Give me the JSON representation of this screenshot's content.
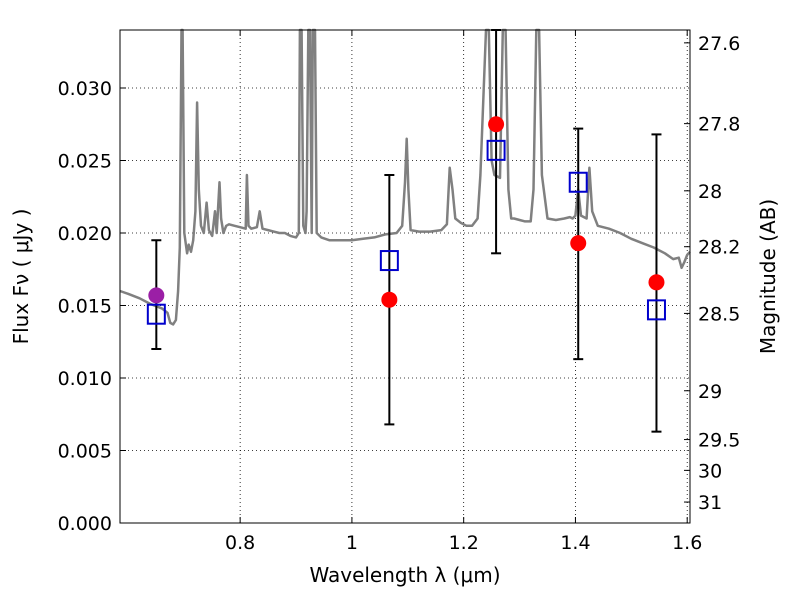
{
  "chart_data": {
    "type": "scatter",
    "xlabel": "Wavelength  λ (μm)",
    "ylabel": "Flux  Fν  ( μJy )",
    "ylabel_right": "Magnitude (AB)",
    "xlim": [
      0.585,
      1.605
    ],
    "ylim": [
      0.0,
      0.034
    ],
    "grid": true,
    "x_ticks": [
      {
        "value": 0.8,
        "label": "0.8"
      },
      {
        "value": 1.0,
        "label": "1"
      },
      {
        "value": 1.2,
        "label": "1.2"
      },
      {
        "value": 1.4,
        "label": "1.4"
      },
      {
        "value": 1.6,
        "label": "1.6"
      }
    ],
    "y_ticks": [
      {
        "value": 0.0,
        "label": "0.000"
      },
      {
        "value": 0.005,
        "label": "0.005"
      },
      {
        "value": 0.01,
        "label": "0.010"
      },
      {
        "value": 0.015,
        "label": "0.015"
      },
      {
        "value": 0.02,
        "label": "0.020"
      },
      {
        "value": 0.025,
        "label": "0.025"
      },
      {
        "value": 0.03,
        "label": "0.030"
      }
    ],
    "mag_ticks": [
      {
        "mag": 27.6,
        "label": "27.6"
      },
      {
        "mag": 27.8,
        "label": "27.8"
      },
      {
        "mag": 28.0,
        "label": "28"
      },
      {
        "mag": 28.2,
        "label": "28.2"
      },
      {
        "mag": 28.5,
        "label": "28.5"
      },
      {
        "mag": 29.0,
        "label": "29"
      },
      {
        "mag": 29.5,
        "label": "29.5"
      },
      {
        "mag": 30.0,
        "label": "30"
      },
      {
        "mag": 31.0,
        "label": "31"
      }
    ],
    "series": [
      {
        "kind": "line",
        "color": "#808080",
        "points": [
          [
            0.585,
            0.016
          ],
          [
            0.6,
            0.0158
          ],
          [
            0.62,
            0.0155
          ],
          [
            0.64,
            0.0151
          ],
          [
            0.66,
            0.0148
          ],
          [
            0.67,
            0.0145
          ],
          [
            0.675,
            0.0138
          ],
          [
            0.68,
            0.0137
          ],
          [
            0.685,
            0.014
          ],
          [
            0.689,
            0.016
          ],
          [
            0.692,
            0.019
          ],
          [
            0.695,
            0.034
          ],
          [
            0.697,
            0.034
          ],
          [
            0.7,
            0.02
          ],
          [
            0.705,
            0.0186
          ],
          [
            0.708,
            0.0192
          ],
          [
            0.712,
            0.0187
          ],
          [
            0.716,
            0.0195
          ],
          [
            0.72,
            0.0215
          ],
          [
            0.723,
            0.029
          ],
          [
            0.726,
            0.023
          ],
          [
            0.73,
            0.0205
          ],
          [
            0.735,
            0.02
          ],
          [
            0.74,
            0.0221
          ],
          [
            0.744,
            0.0202
          ],
          [
            0.75,
            0.0198
          ],
          [
            0.755,
            0.0215
          ],
          [
            0.758,
            0.02
          ],
          [
            0.763,
            0.0235
          ],
          [
            0.766,
            0.021
          ],
          [
            0.77,
            0.02
          ],
          [
            0.775,
            0.0205
          ],
          [
            0.78,
            0.0206
          ],
          [
            0.79,
            0.0205
          ],
          [
            0.8,
            0.0204
          ],
          [
            0.81,
            0.0203
          ],
          [
            0.812,
            0.024
          ],
          [
            0.815,
            0.0205
          ],
          [
            0.82,
            0.0203
          ],
          [
            0.83,
            0.0204
          ],
          [
            0.835,
            0.0215
          ],
          [
            0.84,
            0.0203
          ],
          [
            0.85,
            0.0202
          ],
          [
            0.86,
            0.0201
          ],
          [
            0.87,
            0.02
          ],
          [
            0.88,
            0.02
          ],
          [
            0.89,
            0.0198
          ],
          [
            0.9,
            0.0197
          ],
          [
            0.905,
            0.02
          ],
          [
            0.907,
            0.034
          ],
          [
            0.91,
            0.034
          ],
          [
            0.913,
            0.0205
          ],
          [
            0.917,
            0.02
          ],
          [
            0.919,
            0.0215
          ],
          [
            0.922,
            0.034
          ],
          [
            0.925,
            0.034
          ],
          [
            0.928,
            0.02
          ],
          [
            0.93,
            0.034
          ],
          [
            0.934,
            0.034
          ],
          [
            0.937,
            0.02
          ],
          [
            0.945,
            0.0197
          ],
          [
            0.96,
            0.0195
          ],
          [
            0.98,
            0.0195
          ],
          [
            1.0,
            0.0195
          ],
          [
            1.02,
            0.0196
          ],
          [
            1.04,
            0.0197
          ],
          [
            1.06,
            0.0199
          ],
          [
            1.08,
            0.02
          ],
          [
            1.09,
            0.0205
          ],
          [
            1.095,
            0.0235
          ],
          [
            1.098,
            0.0265
          ],
          [
            1.101,
            0.023
          ],
          [
            1.105,
            0.0202
          ],
          [
            1.12,
            0.0201
          ],
          [
            1.14,
            0.0201
          ],
          [
            1.16,
            0.0202
          ],
          [
            1.17,
            0.0206
          ],
          [
            1.175,
            0.0245
          ],
          [
            1.18,
            0.023
          ],
          [
            1.185,
            0.021
          ],
          [
            1.195,
            0.0207
          ],
          [
            1.205,
            0.0205
          ],
          [
            1.215,
            0.0205
          ],
          [
            1.225,
            0.021
          ],
          [
            1.23,
            0.024
          ],
          [
            1.235,
            0.029
          ],
          [
            1.24,
            0.034
          ],
          [
            1.245,
            0.034
          ],
          [
            1.25,
            0.025
          ],
          [
            1.255,
            0.024
          ],
          [
            1.265,
            0.0238
          ],
          [
            1.27,
            0.034
          ],
          [
            1.275,
            0.034
          ],
          [
            1.28,
            0.023
          ],
          [
            1.285,
            0.021
          ],
          [
            1.29,
            0.021
          ],
          [
            1.3,
            0.0209
          ],
          [
            1.31,
            0.0208
          ],
          [
            1.32,
            0.0208
          ],
          [
            1.325,
            0.023
          ],
          [
            1.33,
            0.034
          ],
          [
            1.335,
            0.034
          ],
          [
            1.34,
            0.024
          ],
          [
            1.345,
            0.0225
          ],
          [
            1.35,
            0.021
          ],
          [
            1.365,
            0.0209
          ],
          [
            1.38,
            0.021
          ],
          [
            1.39,
            0.0211
          ],
          [
            1.395,
            0.021
          ],
          [
            1.4,
            0.0212
          ],
          [
            1.405,
            0.023
          ],
          [
            1.41,
            0.0212
          ],
          [
            1.42,
            0.021
          ],
          [
            1.425,
            0.0245
          ],
          [
            1.43,
            0.0215
          ],
          [
            1.44,
            0.0205
          ],
          [
            1.46,
            0.0203
          ],
          [
            1.48,
            0.02
          ],
          [
            1.5,
            0.0196
          ],
          [
            1.52,
            0.0193
          ],
          [
            1.54,
            0.019
          ],
          [
            1.56,
            0.0186
          ],
          [
            1.575,
            0.0182
          ],
          [
            1.585,
            0.0183
          ],
          [
            1.59,
            0.0176
          ],
          [
            1.595,
            0.018
          ],
          [
            1.6,
            0.0185
          ],
          [
            1.605,
            0.0187
          ]
        ]
      },
      {
        "kind": "errorbar",
        "color": "#000000",
        "points": [
          {
            "x": 0.65,
            "low": 0.012,
            "high": 0.0195
          },
          {
            "x": 1.067,
            "low": 0.0068,
            "high": 0.024
          },
          {
            "x": 1.258,
            "low": 0.0186,
            "high": 0.034
          },
          {
            "x": 1.405,
            "low": 0.0113,
            "high": 0.0272
          },
          {
            "x": 1.545,
            "low": 0.0063,
            "high": 0.0268
          }
        ]
      },
      {
        "kind": "marker-square",
        "color": "#0000cc",
        "points": [
          {
            "x": 0.65,
            "y": 0.0144
          },
          {
            "x": 1.067,
            "y": 0.0181
          },
          {
            "x": 1.258,
            "y": 0.0257
          },
          {
            "x": 1.405,
            "y": 0.0235
          },
          {
            "x": 1.545,
            "y": 0.0147
          }
        ]
      },
      {
        "kind": "marker-circle",
        "points": [
          {
            "x": 0.65,
            "y": 0.0157,
            "color": "#9b1fa6"
          },
          {
            "x": 1.067,
            "y": 0.0154,
            "color": "#ff0000"
          },
          {
            "x": 1.258,
            "y": 0.0275,
            "color": "#ff0000"
          },
          {
            "x": 1.405,
            "y": 0.0193,
            "color": "#ff0000"
          },
          {
            "x": 1.545,
            "y": 0.0166,
            "color": "#ff0000"
          }
        ]
      }
    ]
  }
}
